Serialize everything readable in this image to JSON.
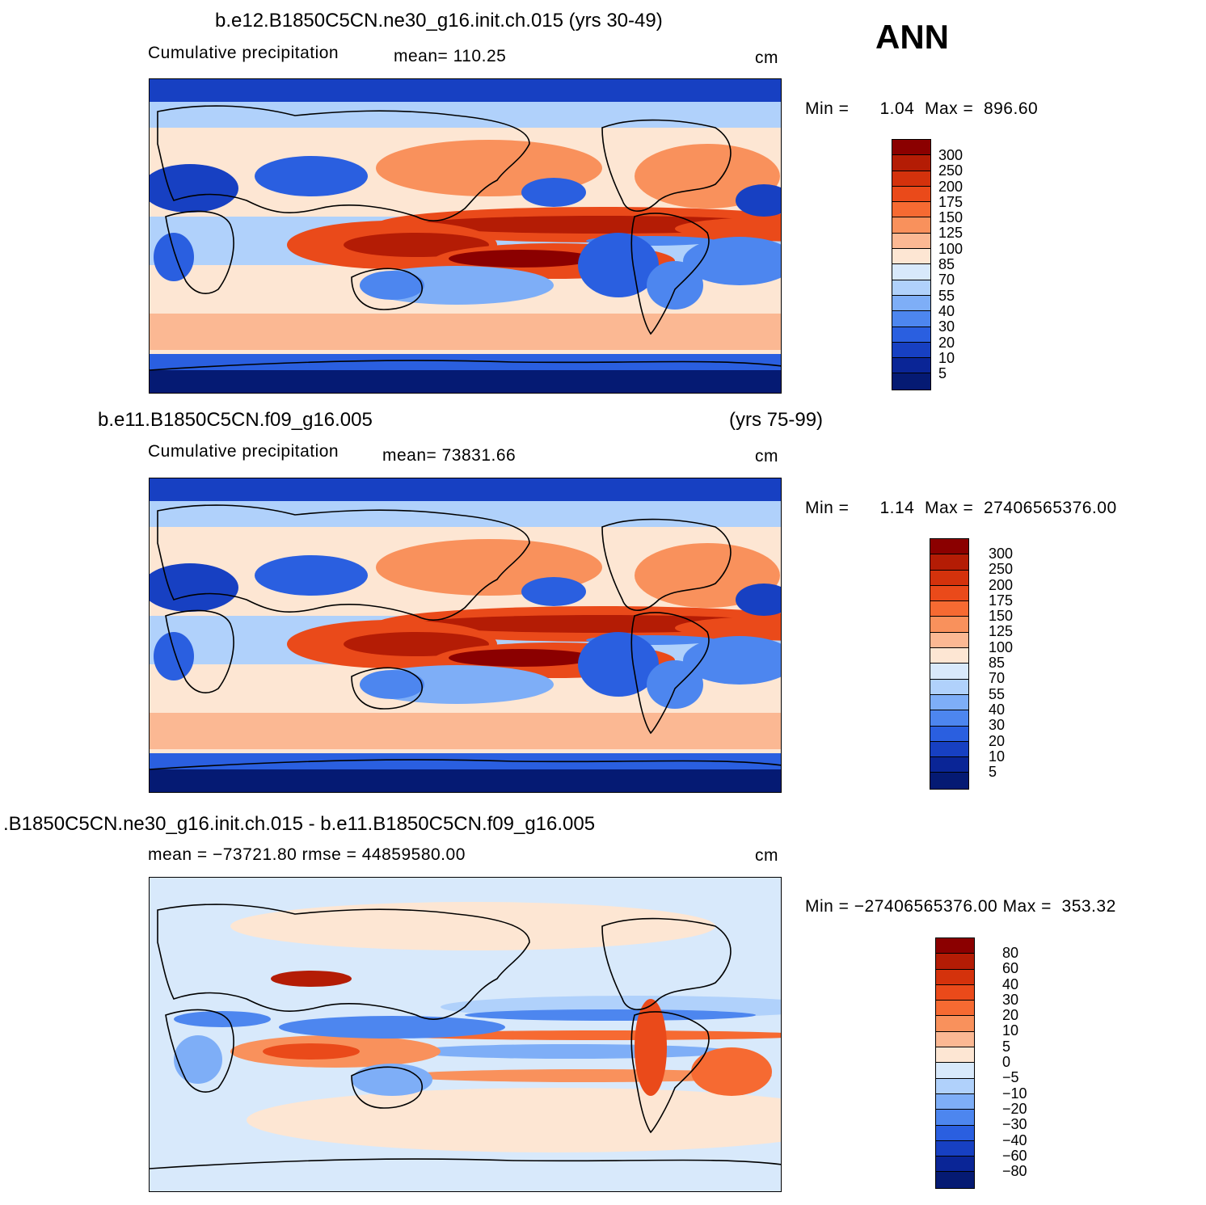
{
  "season": "ANN",
  "panels": [
    {
      "title_left": "b.e12.B1850C5CN.ne30_g16.init.ch.015 (yrs 30-49)",
      "title_right": "",
      "subtitle": "Cumulative precipitation",
      "stat": "mean=  110.25",
      "units": "cm",
      "min_label": "Min  =",
      "min_value": "1.04",
      "max_label": "Max  =",
      "max_value": "896.60"
    },
    {
      "title_left": "b.e11.B1850C5CN.f09_g16.005",
      "title_right": "(yrs 75-99)",
      "subtitle": "Cumulative precipitation",
      "stat": "mean=  73831.66",
      "units": "cm",
      "min_label": "Min  =",
      "min_value": "1.14",
      "max_label": "Max  =",
      "max_value": "27406565376.00"
    },
    {
      "title_left": ".B1850C5CN.ne30_g16.init.ch.015 - b.e11.B1850C5CN.f09_g16.005",
      "title_right": "",
      "subtitle": "",
      "stat": "mean  =  −73721.80    rmse  =  44859580.00",
      "units": "cm",
      "min_label": "Min  =",
      "min_value": "−27406565376.00",
      "max_label": "Max  =",
      "max_value": "353.32"
    }
  ],
  "chart_data": [
    {
      "type": "heatmap",
      "title": "b.e12.B1850C5CN.ne30_g16.init.ch.015 (yrs 30-49)",
      "variable": "Cumulative precipitation",
      "units": "cm",
      "mean": 110.25,
      "min": 1.04,
      "max": 896.6,
      "levels": [
        5,
        10,
        20,
        30,
        40,
        55,
        70,
        85,
        100,
        125,
        150,
        175,
        200,
        250,
        300
      ],
      "level_labels": [
        "300",
        "250",
        "200",
        "175",
        "150",
        "125",
        "100",
        "85",
        "70",
        "55",
        "40",
        "30",
        "20",
        "10",
        "5"
      ],
      "colors": [
        "#8b0000",
        "#b41c05",
        "#d4320c",
        "#ea4a1a",
        "#f66a32",
        "#f9915c",
        "#fbb893",
        "#fde6d3",
        "#d8e9fb",
        "#b0d1fb",
        "#7eaef7",
        "#4d86ef",
        "#2a5fe0",
        "#1740c2",
        "#0a2596",
        "#051a73"
      ]
    },
    {
      "type": "heatmap",
      "title": "b.e11.B1850C5CN.f09_g16.005 (yrs 75-99)",
      "variable": "Cumulative precipitation",
      "units": "cm",
      "mean": 73831.66,
      "min": 1.14,
      "max": 27406565376.0,
      "levels": [
        5,
        10,
        20,
        30,
        40,
        55,
        70,
        85,
        100,
        125,
        150,
        175,
        200,
        250,
        300
      ],
      "level_labels": [
        "300",
        "250",
        "200",
        "175",
        "150",
        "125",
        "100",
        "85",
        "70",
        "55",
        "40",
        "30",
        "20",
        "10",
        "5"
      ],
      "colors": [
        "#8b0000",
        "#b41c05",
        "#d4320c",
        "#ea4a1a",
        "#f66a32",
        "#f9915c",
        "#fbb893",
        "#fde6d3",
        "#d8e9fb",
        "#b0d1fb",
        "#7eaef7",
        "#4d86ef",
        "#2a5fe0",
        "#1740c2",
        "#0a2596",
        "#051a73"
      ]
    },
    {
      "type": "heatmap",
      "title": ".B1850C5CN.ne30_g16.init.ch.015 - b.e11.B1850C5CN.f09_g16.005",
      "units": "cm",
      "mean": -73721.8,
      "rmse": 44859580.0,
      "min": -27406565376.0,
      "max": 353.32,
      "levels": [
        -80,
        -60,
        -40,
        -30,
        -20,
        -10,
        -5,
        0,
        5,
        10,
        20,
        30,
        40,
        60,
        80
      ],
      "level_labels": [
        "80",
        "60",
        "40",
        "30",
        "20",
        "10",
        "5",
        "0",
        "−5",
        "−10",
        "−20",
        "−30",
        "−40",
        "−60",
        "−80"
      ],
      "colors": [
        "#8b0000",
        "#b41c05",
        "#d4320c",
        "#ea4a1a",
        "#f66a32",
        "#f9915c",
        "#fbb893",
        "#fde6d3",
        "#d8e9fb",
        "#b0d1fb",
        "#7eaef7",
        "#4d86ef",
        "#2a5fe0",
        "#1740c2",
        "#0a2596",
        "#051a73"
      ]
    }
  ]
}
